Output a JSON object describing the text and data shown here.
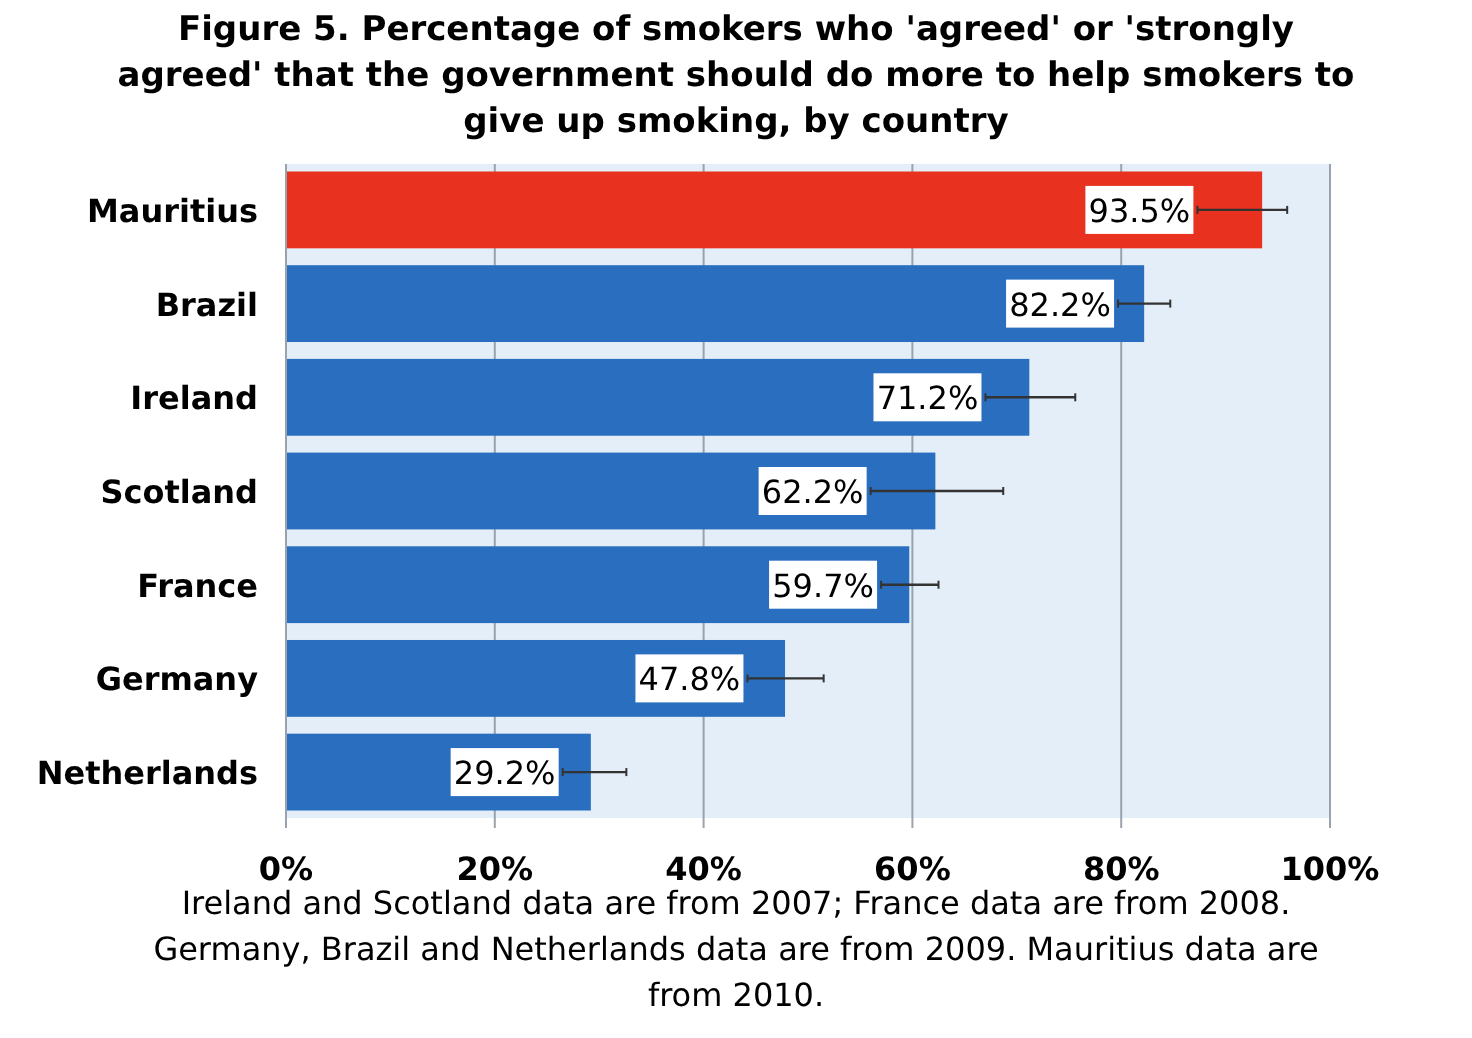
{
  "chart_data": {
    "type": "bar",
    "orientation": "horizontal",
    "title": "Figure 5.  Percentage of smokers who 'agreed' or 'strongly agreed' that the government should do more to help smokers to give up smoking, by country",
    "categories": [
      "Mauritius",
      "Brazil",
      "Ireland",
      "Scotland",
      "France",
      "Germany",
      "Netherlands"
    ],
    "values": [
      93.5,
      82.2,
      71.2,
      62.2,
      59.7,
      47.8,
      29.2
    ],
    "colors": [
      "#e8311f",
      "#2a6fbf",
      "#2a6fbf",
      "#2a6fbf",
      "#2a6fbf",
      "#2a6fbf",
      "#2a6fbf"
    ],
    "errors": [
      [
        87.3,
        95.9
      ],
      [
        79.7,
        84.7
      ],
      [
        67.0,
        75.6
      ],
      [
        56.0,
        68.7
      ],
      [
        57.0,
        62.5
      ],
      [
        44.2,
        51.5
      ],
      [
        26.5,
        32.6
      ]
    ],
    "value_labels": [
      "93.5%",
      "82.2%",
      "71.2%",
      "62.2%",
      "59.7%",
      "47.8%",
      "29.2%"
    ],
    "xlim": [
      0,
      100
    ],
    "xticks": [
      {
        "value": 0,
        "label": "0%"
      },
      {
        "value": 20,
        "label": "20%"
      },
      {
        "value": 40,
        "label": "40%"
      },
      {
        "value": 60,
        "label": "60%"
      },
      {
        "value": 80,
        "label": "80%"
      },
      {
        "value": 100,
        "label": "100%"
      }
    ],
    "grid": "x",
    "annotations": [
      "Ireland and Scotland data are from 2007; France data are from 2008. Germany, Brazil and Netherlands data are from 2009. Mauritius data are from 2010."
    ]
  }
}
